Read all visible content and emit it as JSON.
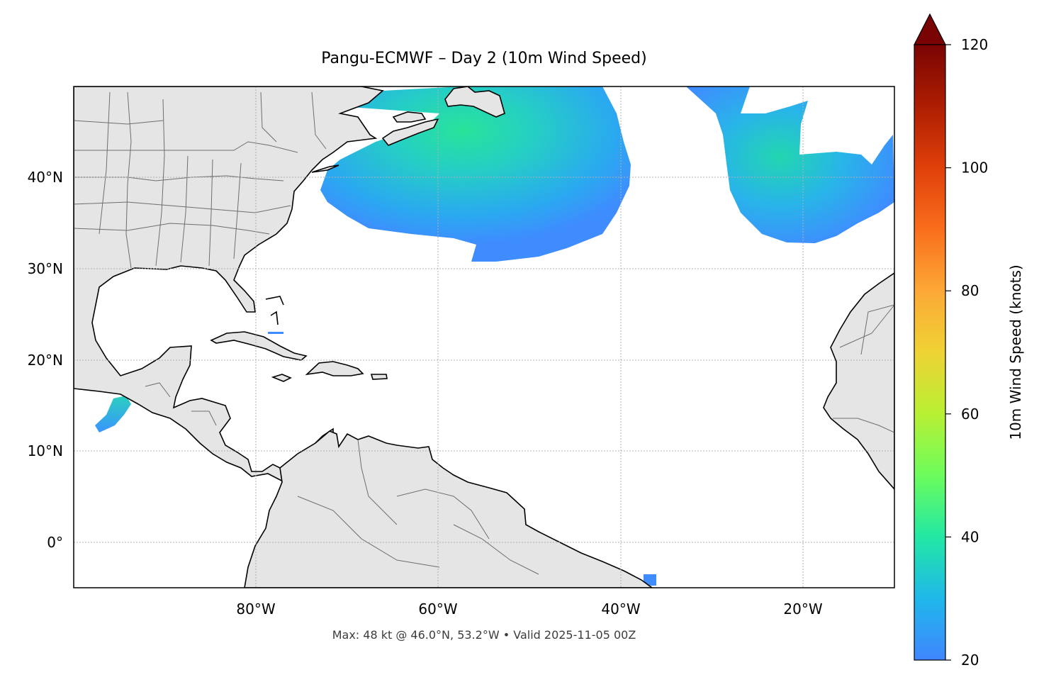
{
  "title": "Pangu-ECMWF – Day 2 (10m Wind Speed)",
  "footnote": "Max: 48 kt @ 46.0°N, 53.2°W • Valid 2025-11-05 00Z",
  "map": {
    "lon_range": [
      -100,
      -10
    ],
    "lat_range": [
      -5,
      50
    ],
    "lon_ticks": [
      {
        "value": -80,
        "label": "80°W"
      },
      {
        "value": -60,
        "label": "60°W"
      },
      {
        "value": -40,
        "label": "40°W"
      },
      {
        "value": -20,
        "label": "20°W"
      }
    ],
    "lat_ticks": [
      {
        "value": 40,
        "label": "40°N"
      },
      {
        "value": 30,
        "label": "30°N"
      },
      {
        "value": 20,
        "label": "20°N"
      },
      {
        "value": 10,
        "label": "10°N"
      },
      {
        "value": 0,
        "label": "0°"
      }
    ],
    "gridlines": "dotted",
    "land_color": "#e5e5e5",
    "ocean_color": "#ffffff"
  },
  "colorbar": {
    "label": "10m Wind Speed (knots)",
    "range": [
      20,
      120
    ],
    "ticks": [
      20,
      40,
      60,
      80,
      100,
      120
    ],
    "extend": "max",
    "colormap": "turbo"
  },
  "wind_features": [
    {
      "name": "nw-atlantic-storm",
      "center": [
        -55,
        44
      ],
      "peak_kt": 48
    },
    {
      "name": "ne-atlantic-storm",
      "center": [
        -20,
        40
      ],
      "peak_kt": 36
    },
    {
      "name": "gulf-of-tehuantepec",
      "center": [
        -95,
        14
      ],
      "peak_kt": 32
    }
  ]
}
